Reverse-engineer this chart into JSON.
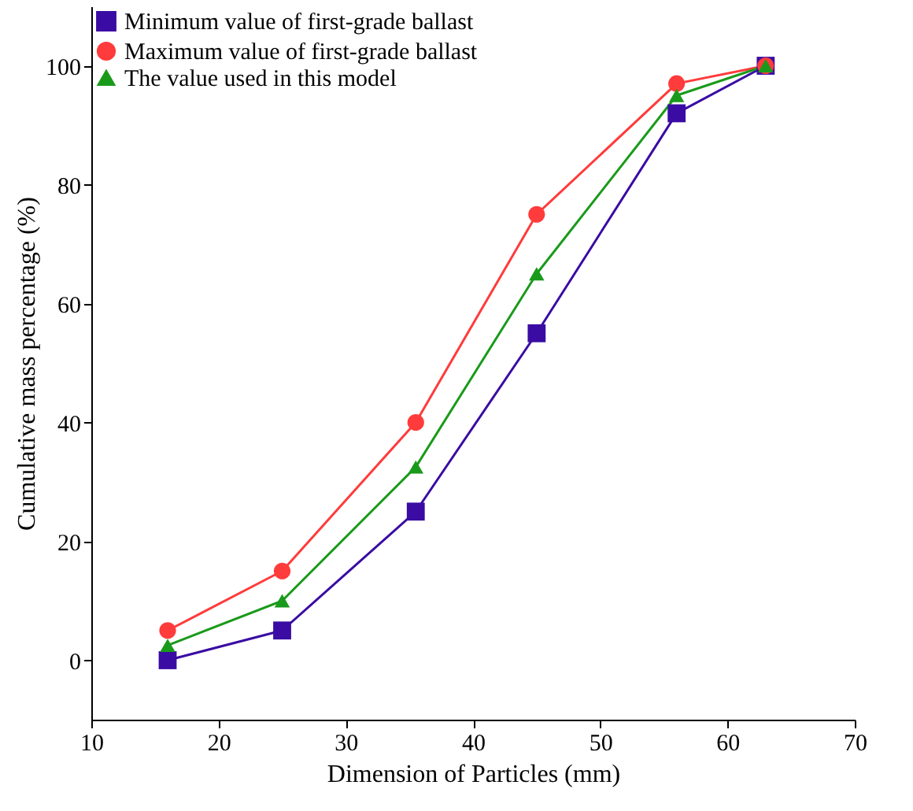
{
  "chart_data": {
    "type": "line",
    "xlabel": "Dimension of Particles (mm)",
    "ylabel": "Cumulative mass percentage (%)",
    "x": [
      16,
      25,
      35.5,
      45,
      56,
      63
    ],
    "series": [
      {
        "name": "Minimum value of first-grade ballast",
        "color": "#3a0ca3",
        "marker": "square",
        "values": [
          0,
          5,
          25,
          55,
          92,
          100
        ]
      },
      {
        "name": "Maximum value of first-grade ballast",
        "color": "#ff3b3b",
        "marker": "circle",
        "values": [
          5,
          15,
          40,
          75,
          97,
          100
        ]
      },
      {
        "name": "The value used in this model",
        "color": "#1a9a1a",
        "marker": "triangle",
        "values": [
          2.5,
          10,
          32.5,
          65,
          95,
          100
        ]
      }
    ],
    "xlim": [
      10,
      70
    ],
    "xticks": [
      10,
      20,
      30,
      40,
      50,
      60,
      70
    ],
    "ylim": [
      -10,
      110
    ],
    "yticks": [
      0,
      20,
      40,
      60,
      80,
      100
    ],
    "grid": false,
    "legend": "top left",
    "line_style": "solid"
  }
}
